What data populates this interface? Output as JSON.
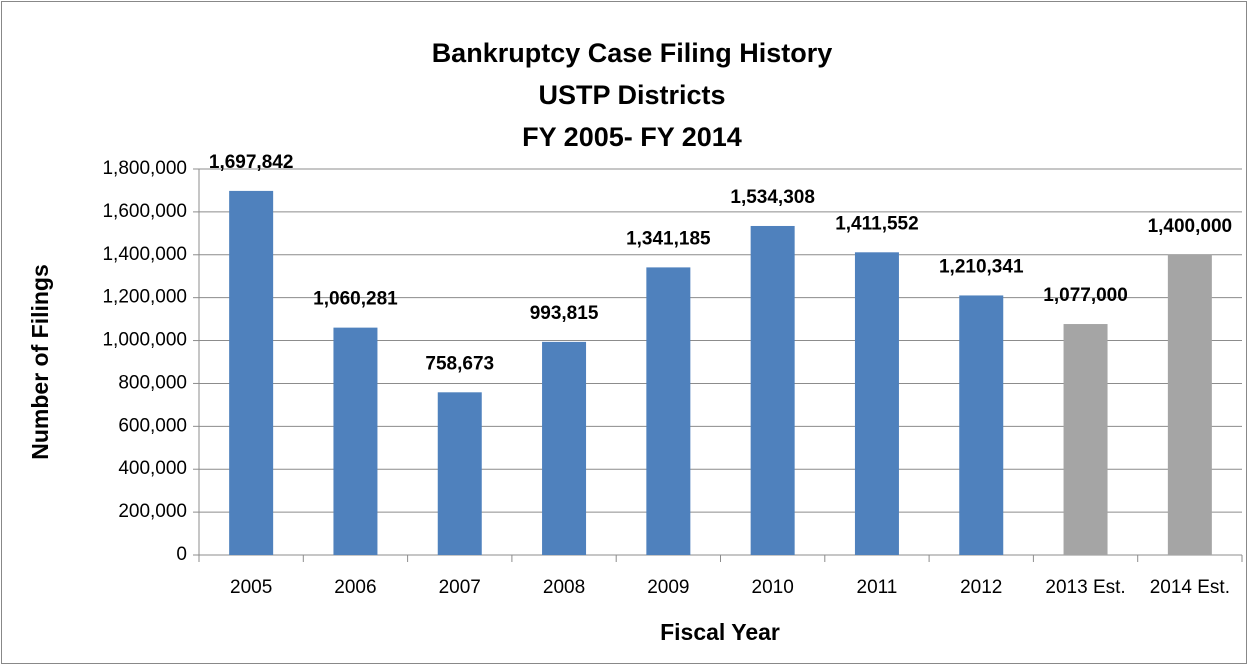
{
  "chart_data": {
    "type": "bar",
    "title": [
      "Bankruptcy Case Filing History",
      "USTP Districts",
      "FY 2005- FY 2014"
    ],
    "x_label": "Fiscal Year",
    "y_label": "Number of Filings",
    "categories": [
      "2005",
      "2006",
      "2007",
      "2008",
      "2009",
      "2010",
      "2011",
      "2012",
      "2013 Est.",
      "2014 Est."
    ],
    "values": [
      1697842,
      1060281,
      758673,
      993815,
      1341185,
      1534308,
      1411552,
      1210341,
      1077000,
      1400000
    ],
    "value_labels": [
      "1,697,842",
      "1,060,281",
      "758,673",
      "993,815",
      "1,341,185",
      "1,534,308",
      "1,411,552",
      "1,210,341",
      "1,077,000",
      "1,400,000"
    ],
    "colors": [
      "#4f81bd",
      "#4f81bd",
      "#4f81bd",
      "#4f81bd",
      "#4f81bd",
      "#4f81bd",
      "#4f81bd",
      "#4f81bd",
      "#a5a5a5",
      "#a5a5a5"
    ],
    "ylim": [
      0,
      1800000
    ],
    "yticks": [
      0,
      {
        "value": 200000,
        "label": "200,000"
      },
      {
        "value": 400000,
        "label": "400,000"
      },
      {
        "value": 600000,
        "label": "600,000"
      },
      {
        "value": 800000,
        "label": "800,000"
      },
      {
        "value": 1000000,
        "label": "1,000,000"
      },
      {
        "value": 1200000,
        "label": "1,200,000"
      },
      {
        "value": 1400000,
        "label": "1,400,000"
      },
      {
        "value": 1600000,
        "label": "1,600,000"
      },
      {
        "value": 1800000,
        "label": "1,800,000"
      }
    ],
    "grid": true
  }
}
